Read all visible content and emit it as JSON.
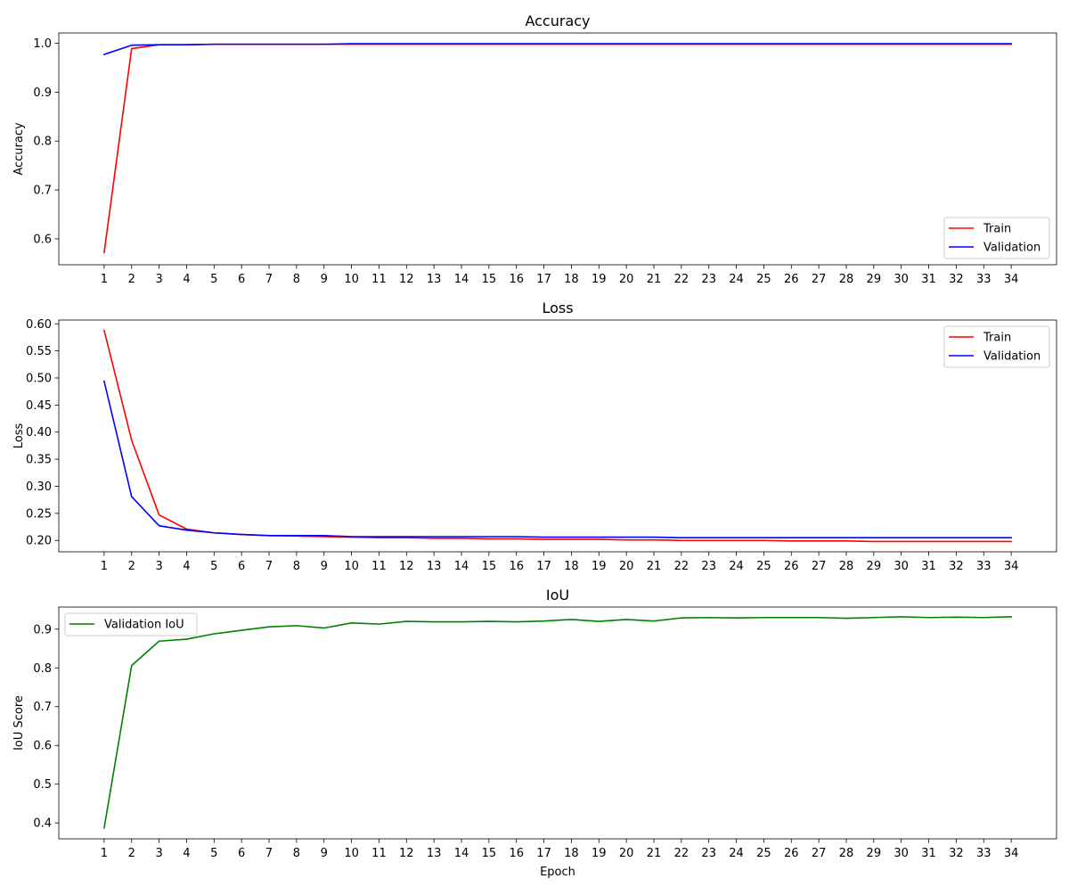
{
  "figure": {
    "background": "#ffffff"
  },
  "chart_data": [
    {
      "type": "line",
      "title": "Accuracy",
      "xlabel": "",
      "ylabel": "Accuracy",
      "x": [
        1,
        2,
        3,
        4,
        5,
        6,
        7,
        8,
        9,
        10,
        11,
        12,
        13,
        14,
        15,
        16,
        17,
        18,
        19,
        20,
        21,
        22,
        23,
        24,
        25,
        26,
        27,
        28,
        29,
        30,
        31,
        32,
        33,
        34
      ],
      "x_ticks": [
        1,
        2,
        3,
        4,
        5,
        6,
        7,
        8,
        9,
        10,
        11,
        12,
        13,
        14,
        15,
        16,
        17,
        18,
        19,
        20,
        21,
        22,
        23,
        24,
        25,
        26,
        27,
        28,
        29,
        30,
        31,
        32,
        33,
        34
      ],
      "xlim": [
        -0.65,
        35.65
      ],
      "ylim": [
        0.547,
        1.021
      ],
      "y_ticks": [
        "0.6",
        "0.7",
        "0.8",
        "0.9",
        "1.0"
      ],
      "grid": false,
      "legend": "lower-right",
      "series": [
        {
          "name": "Train",
          "color": "#ff0000",
          "values": [
            0.572,
            0.989,
            0.997,
            0.997,
            0.998,
            0.998,
            0.998,
            0.998,
            0.998,
            0.998,
            0.998,
            0.998,
            0.998,
            0.998,
            0.998,
            0.998,
            0.998,
            0.998,
            0.998,
            0.998,
            0.998,
            0.998,
            0.998,
            0.998,
            0.998,
            0.998,
            0.998,
            0.998,
            0.998,
            0.998,
            0.998,
            0.998,
            0.998,
            0.998
          ]
        },
        {
          "name": "Validation",
          "color": "#0000ff",
          "values": [
            0.977,
            0.996,
            0.997,
            0.997,
            0.998,
            0.998,
            0.998,
            0.998,
            0.998,
            0.999,
            0.999,
            0.999,
            0.999,
            0.999,
            0.999,
            0.999,
            0.999,
            0.999,
            0.999,
            0.999,
            0.999,
            0.999,
            0.999,
            0.999,
            0.999,
            0.999,
            0.999,
            0.999,
            0.999,
            0.999,
            0.999,
            0.999,
            0.999,
            0.999
          ]
        }
      ]
    },
    {
      "type": "line",
      "title": "Loss",
      "xlabel": "",
      "ylabel": "Loss",
      "x": [
        1,
        2,
        3,
        4,
        5,
        6,
        7,
        8,
        9,
        10,
        11,
        12,
        13,
        14,
        15,
        16,
        17,
        18,
        19,
        20,
        21,
        22,
        23,
        24,
        25,
        26,
        27,
        28,
        29,
        30,
        31,
        32,
        33,
        34
      ],
      "x_ticks": [
        1,
        2,
        3,
        4,
        5,
        6,
        7,
        8,
        9,
        10,
        11,
        12,
        13,
        14,
        15,
        16,
        17,
        18,
        19,
        20,
        21,
        22,
        23,
        24,
        25,
        26,
        27,
        28,
        29,
        30,
        31,
        32,
        33,
        34
      ],
      "xlim": [
        -0.65,
        35.65
      ],
      "ylim": [
        0.179,
        0.607
      ],
      "y_ticks": [
        "0.20",
        "0.25",
        "0.30",
        "0.35",
        "0.40",
        "0.45",
        "0.50",
        "0.55",
        "0.60"
      ],
      "grid": false,
      "legend": "upper-right",
      "series": [
        {
          "name": "Train",
          "color": "#ff0000",
          "values": [
            0.588,
            0.385,
            0.247,
            0.221,
            0.214,
            0.211,
            0.209,
            0.208,
            0.207,
            0.206,
            0.205,
            0.205,
            0.204,
            0.204,
            0.203,
            0.203,
            0.202,
            0.202,
            0.202,
            0.201,
            0.201,
            0.2,
            0.2,
            0.2,
            0.2,
            0.199,
            0.199,
            0.199,
            0.198,
            0.198,
            0.198,
            0.198,
            0.198,
            0.198
          ]
        },
        {
          "name": "Validation",
          "color": "#0000ff",
          "values": [
            0.494,
            0.281,
            0.227,
            0.219,
            0.214,
            0.211,
            0.209,
            0.209,
            0.209,
            0.207,
            0.207,
            0.207,
            0.207,
            0.207,
            0.207,
            0.207,
            0.206,
            0.206,
            0.206,
            0.206,
            0.206,
            0.205,
            0.205,
            0.205,
            0.205,
            0.205,
            0.205,
            0.205,
            0.205,
            0.205,
            0.205,
            0.205,
            0.205,
            0.205
          ]
        }
      ]
    },
    {
      "type": "line",
      "title": "IoU",
      "xlabel": "Epoch",
      "ylabel": "IoU Score",
      "x": [
        1,
        2,
        3,
        4,
        5,
        6,
        7,
        8,
        9,
        10,
        11,
        12,
        13,
        14,
        15,
        16,
        17,
        18,
        19,
        20,
        21,
        22,
        23,
        24,
        25,
        26,
        27,
        28,
        29,
        30,
        31,
        32,
        33,
        34
      ],
      "x_ticks": [
        1,
        2,
        3,
        4,
        5,
        6,
        7,
        8,
        9,
        10,
        11,
        12,
        13,
        14,
        15,
        16,
        17,
        18,
        19,
        20,
        21,
        22,
        23,
        24,
        25,
        26,
        27,
        28,
        29,
        30,
        31,
        32,
        33,
        34
      ],
      "xlim": [
        -0.65,
        35.65
      ],
      "ylim": [
        0.359,
        0.957
      ],
      "y_ticks": [
        "0.4",
        "0.5",
        "0.6",
        "0.7",
        "0.8",
        "0.9"
      ],
      "grid": false,
      "legend": "upper-left",
      "series": [
        {
          "name": "Validation IoU",
          "color": "#008000",
          "values": [
            0.387,
            0.806,
            0.869,
            0.874,
            0.888,
            0.897,
            0.906,
            0.909,
            0.903,
            0.916,
            0.913,
            0.92,
            0.919,
            0.919,
            0.92,
            0.919,
            0.921,
            0.925,
            0.92,
            0.925,
            0.921,
            0.929,
            0.93,
            0.929,
            0.93,
            0.93,
            0.93,
            0.928,
            0.93,
            0.932,
            0.93,
            0.931,
            0.93,
            0.932
          ]
        }
      ]
    }
  ]
}
